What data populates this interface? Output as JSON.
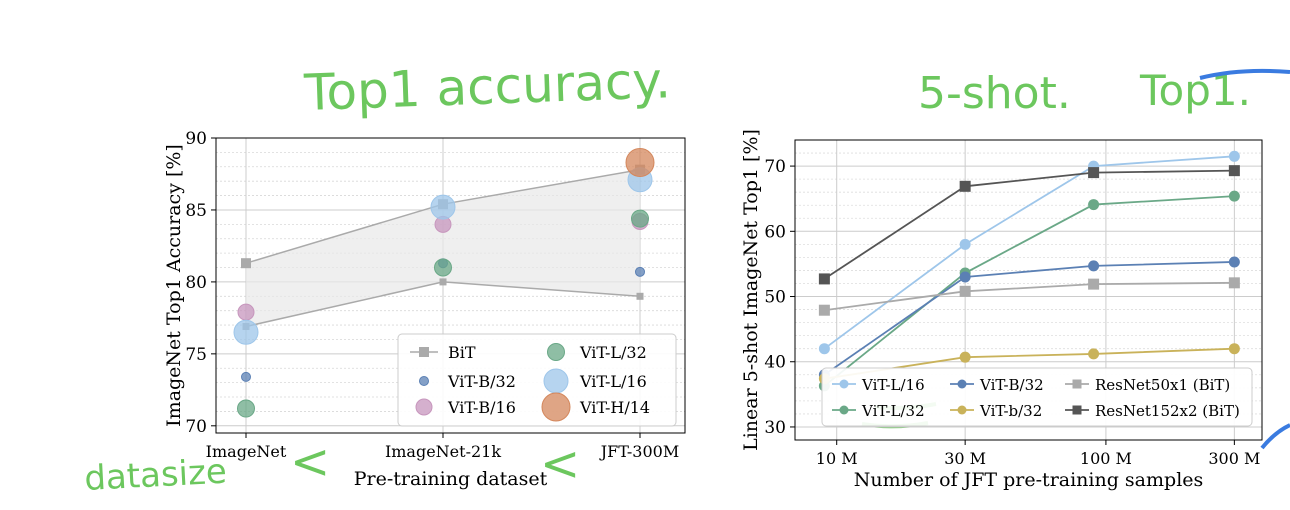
{
  "annotations": {
    "top1_note": "Top1 accuracy.",
    "fiveshot_note": "5-shot.",
    "top1_note_right": "Top1.",
    "datasize_note": "datasize",
    "less_than_1": "<",
    "less_than_2": "<"
  },
  "colors": {
    "bit": "#aaaaaa",
    "vit_b32": "#5b80b4",
    "vit_b16": "#c796bd",
    "vit_l32": "#6aa887",
    "vit_l16": "#9ec6ea",
    "vit_h14": "#d4875c",
    "bit_r50": "#aaaaaa",
    "bit_r152": "#555555",
    "vit_b32_lin": "#c9b25a",
    "annotation_green": "#6cc75e",
    "annotation_blue": "#3a7be0"
  },
  "chart_data": [
    {
      "type": "scatter",
      "xlabel": "Pre-training dataset",
      "ylabel": "ImageNet Top1 Accuracy [%]",
      "categories": [
        "ImageNet",
        "ImageNet-21k",
        "JFT-300M"
      ],
      "ylim": [
        69.5,
        90
      ],
      "yticks": [
        "70",
        "75",
        "80",
        "85",
        "90"
      ],
      "grid": true,
      "legend_position": "bottom-right",
      "bit_band": {
        "name": "BiT",
        "upper": [
          81.3,
          85.4,
          87.8
        ],
        "lower": [
          76.9,
          80.0,
          79.0
        ]
      },
      "series": [
        {
          "name": "ViT-B/32",
          "values": [
            73.4,
            81.3,
            80.7
          ]
        },
        {
          "name": "ViT-B/16",
          "values": [
            77.9,
            84.0,
            84.2
          ]
        },
        {
          "name": "ViT-L/32",
          "values": [
            71.2,
            81.0,
            84.4
          ]
        },
        {
          "name": "ViT-L/16",
          "values": [
            76.5,
            85.2,
            87.1
          ]
        },
        {
          "name": "ViT-H/14",
          "values": [
            null,
            null,
            88.3
          ]
        }
      ]
    },
    {
      "type": "line",
      "xlabel": "Number of JFT pre-training samples",
      "ylabel": "Linear 5-shot ImageNet Top1 [%]",
      "x": [
        9,
        30,
        90,
        300
      ],
      "xtick_labels": [
        "10 M",
        "30 M",
        "100 M",
        "300 M"
      ],
      "xtick_values": [
        10,
        30,
        100,
        300
      ],
      "x_scale": "log",
      "ylim": [
        28,
        74
      ],
      "yticks": [
        "30",
        "40",
        "50",
        "60",
        "70"
      ],
      "grid": true,
      "legend_position": "bottom",
      "series": [
        {
          "name": "ViT-L/16",
          "values": [
            42.0,
            58.0,
            70.0,
            71.5
          ]
        },
        {
          "name": "ViT-L/32",
          "values": [
            36.3,
            53.6,
            64.1,
            65.4
          ]
        },
        {
          "name": "ViT-B/32",
          "values": [
            38.0,
            53.0,
            54.7,
            55.3
          ]
        },
        {
          "name": "ViT-b/32",
          "values": [
            37.4,
            40.7,
            41.2,
            42.0
          ]
        },
        {
          "name": "ResNet50x1 (BiT)",
          "values": [
            47.9,
            50.8,
            51.9,
            52.1
          ]
        },
        {
          "name": "ResNet152x2 (BiT)",
          "values": [
            52.7,
            66.9,
            69.0,
            69.3
          ]
        }
      ]
    }
  ]
}
